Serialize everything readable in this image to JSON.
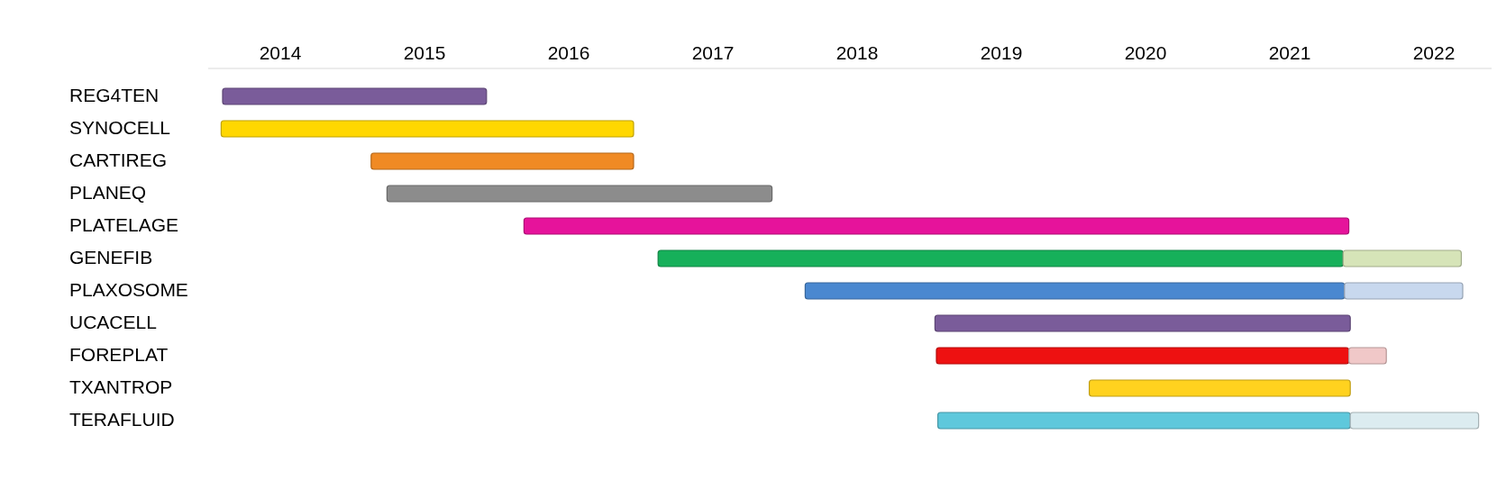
{
  "chart_data": {
    "type": "bar",
    "orientation": "horizontal",
    "categories": [
      "REG4TEN",
      "SYNOCELL",
      "CARTIREG",
      "PLANEQ",
      "PLATELAGE",
      "GENEFIB",
      "PLAXOSOME",
      "UCACELL",
      "FOREPLAT",
      "TXANTROP",
      "TERAFLUID"
    ],
    "series": [
      {
        "base": [
          2013.6,
          2013.59,
          2014.63,
          2014.74,
          2015.69,
          2016.62,
          2017.64,
          2018.54,
          2018.55,
          2019.61,
          2018.56
        ],
        "values": [
          1.83,
          2.86,
          1.82,
          2.67,
          5.72,
          4.75,
          3.74,
          2.88,
          2.86,
          1.81,
          2.86
        ],
        "colors": [
          "#7a5c9a",
          "#ffd700",
          "#f08a24",
          "#8c8c8c",
          "#e6139b",
          "#16b05a",
          "#4a88d0",
          "#7a5c9a",
          "#ee1111",
          "#ffd21f",
          "#5ec8dc"
        ]
      },
      {
        "base": [
          null,
          null,
          null,
          null,
          null,
          2021.37,
          2021.38,
          null,
          2021.41,
          null,
          2021.42
        ],
        "values": [
          null,
          null,
          null,
          null,
          null,
          0.82,
          0.82,
          null,
          0.26,
          null,
          0.89
        ],
        "colors": [
          null,
          null,
          null,
          null,
          null,
          "#d6e4b8",
          "#c8d8ee",
          null,
          "#f0c8c8",
          null,
          "#dcecf0"
        ]
      }
    ],
    "xlim": [
      2013.5,
      2022.4
    ],
    "xticks": [
      2014,
      2015,
      2016,
      2017,
      2018,
      2019,
      2020,
      2021,
      2022
    ]
  }
}
